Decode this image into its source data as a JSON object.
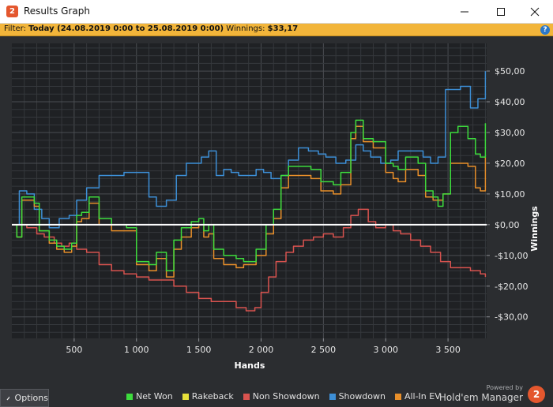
{
  "window": {
    "title": "Results Graph",
    "minimize_icon": "minimize-icon",
    "maximize_icon": "maximize-icon",
    "close_icon": "close-icon"
  },
  "filter": {
    "label": "Filter:",
    "range": "Today (24.08.2019 0:00 to 25.08.2019 0:00)",
    "winnings_label": "Winnings:",
    "winnings_value": "$33,17",
    "help_icon": "help-icon"
  },
  "footer": {
    "options_label": "Options",
    "options_icon": "chevron-up-icon",
    "powered_by": "Powered by",
    "brand": "Hold'em Manager",
    "brand_badge": "2"
  },
  "chart_data": {
    "type": "line",
    "xlabel": "Hands",
    "ylabel": "Winnings",
    "xlim": [
      0,
      3810
    ],
    "ylim": [
      -37,
      59
    ],
    "x_ticks": [
      500,
      1000,
      1500,
      2000,
      2500,
      3000,
      3500
    ],
    "x_tick_labels": [
      "500",
      "1 000",
      "1 500",
      "2 000",
      "2 500",
      "3 000",
      "3 500"
    ],
    "y_ticks": [
      50,
      40,
      30,
      20,
      10,
      0,
      -10,
      -20,
      -30
    ],
    "y_tick_labels": [
      "$50,00",
      "$40,00",
      "$30,00",
      "$20,00",
      "$10,00",
      "$0,00",
      "-$10,00",
      "-$20,00",
      "-$30,00"
    ],
    "grid": true,
    "zero_line": true,
    "legend_position": "bottom",
    "series": [
      {
        "name": "Net Won",
        "color": "#3ddc3d",
        "x": [
          0,
          40,
          80,
          180,
          220,
          300,
          360,
          420,
          480,
          520,
          560,
          620,
          700,
          800,
          920,
          1000,
          1100,
          1160,
          1240,
          1300,
          1360,
          1440,
          1500,
          1540,
          1580,
          1620,
          1700,
          1800,
          1860,
          1960,
          2040,
          2100,
          2160,
          2220,
          2300,
          2400,
          2480,
          2580,
          2640,
          2720,
          2760,
          2820,
          2900,
          2960,
          3000,
          3060,
          3100,
          3160,
          3260,
          3320,
          3380,
          3420,
          3460,
          3520,
          3580,
          3660,
          3720,
          3760,
          3800
        ],
        "values": [
          0,
          -4,
          9,
          7,
          -2,
          -5,
          -7,
          -8,
          -6,
          3,
          4,
          9,
          2,
          0,
          -1,
          -12,
          -13,
          -9,
          -15,
          -5,
          -1,
          1,
          2,
          -2,
          0,
          -8,
          -10,
          -11,
          -12,
          -8,
          0,
          5,
          16,
          19,
          19,
          18,
          14,
          13,
          17,
          30,
          34,
          28,
          27,
          27,
          20,
          19,
          18,
          22,
          20,
          11,
          9,
          6,
          10,
          30,
          32,
          28,
          23,
          22,
          33
        ]
      },
      {
        "name": "Rakeback",
        "color": "#e6e03a",
        "x": [
          0,
          3810
        ],
        "values": [
          0,
          0
        ]
      },
      {
        "name": "Non Showdown",
        "color": "#d9534f",
        "x": [
          0,
          60,
          120,
          200,
          260,
          340,
          400,
          460,
          520,
          600,
          700,
          800,
          900,
          1000,
          1100,
          1200,
          1300,
          1400,
          1500,
          1600,
          1700,
          1800,
          1880,
          1950,
          2000,
          2060,
          2120,
          2200,
          2260,
          2340,
          2420,
          2500,
          2580,
          2660,
          2720,
          2780,
          2860,
          2920,
          3000,
          3060,
          3120,
          3200,
          3280,
          3360,
          3440,
          3520,
          3600,
          3680,
          3760,
          3800
        ],
        "values": [
          0,
          0,
          -1,
          -3,
          -4,
          -6,
          -7,
          -6,
          -8,
          -9,
          -13,
          -15,
          -16,
          -17,
          -18,
          -18,
          -20,
          -22,
          -24,
          -25,
          -25,
          -27,
          -28,
          -27,
          -22,
          -17,
          -12,
          -9,
          -7,
          -5,
          -4,
          -3,
          -4,
          -1,
          3,
          5,
          1,
          -1,
          0,
          -2,
          -3,
          -5,
          -7,
          -9,
          -12,
          -14,
          -14,
          -15,
          -16,
          -17
        ]
      },
      {
        "name": "Showdown",
        "color": "#3d8fd6",
        "x": [
          0,
          60,
          120,
          180,
          240,
          300,
          380,
          460,
          520,
          600,
          700,
          800,
          900,
          960,
          1040,
          1100,
          1160,
          1240,
          1320,
          1400,
          1460,
          1520,
          1580,
          1640,
          1700,
          1760,
          1820,
          1880,
          1960,
          2020,
          2080,
          2160,
          2220,
          2300,
          2380,
          2460,
          2520,
          2600,
          2680,
          2760,
          2820,
          2880,
          2960,
          3040,
          3100,
          3160,
          3240,
          3300,
          3360,
          3420,
          3480,
          3540,
          3600,
          3680,
          3740,
          3800
        ],
        "values": [
          0,
          11,
          10,
          5,
          2,
          -1,
          2,
          3,
          8,
          12,
          16,
          16,
          17,
          17,
          17,
          9,
          6,
          8,
          16,
          20,
          20,
          22,
          24,
          16,
          18,
          17,
          16,
          16,
          18,
          17,
          15,
          16,
          21,
          25,
          24,
          23,
          22,
          20,
          21,
          26,
          24,
          22,
          20,
          21,
          24,
          24,
          24,
          22,
          20,
          22,
          44,
          44,
          45,
          38,
          41,
          50
        ]
      },
      {
        "name": "All-In EV",
        "color": "#e88f2a",
        "x": [
          0,
          40,
          80,
          180,
          220,
          300,
          360,
          420,
          480,
          520,
          560,
          620,
          700,
          800,
          920,
          1000,
          1100,
          1160,
          1240,
          1300,
          1360,
          1440,
          1500,
          1540,
          1580,
          1620,
          1700,
          1800,
          1860,
          1960,
          2040,
          2100,
          2160,
          2220,
          2300,
          2400,
          2480,
          2580,
          2640,
          2720,
          2760,
          2820,
          2900,
          2960,
          3000,
          3060,
          3100,
          3160,
          3260,
          3320,
          3380,
          3420,
          3460,
          3520,
          3580,
          3660,
          3720,
          3760,
          3800
        ],
        "values": [
          0,
          -4,
          8,
          6,
          -2,
          -6,
          -8,
          -9,
          -7,
          1,
          2,
          7,
          0,
          -2,
          -2,
          -13,
          -15,
          -11,
          -17,
          -8,
          -4,
          -1,
          0,
          -4,
          -3,
          -11,
          -13,
          -14,
          -13,
          -10,
          -3,
          2,
          12,
          16,
          16,
          15,
          11,
          10,
          13,
          28,
          32,
          27,
          25,
          25,
          17,
          15,
          14,
          18,
          16,
          9,
          8,
          8,
          10,
          20,
          20,
          19,
          12,
          11,
          22
        ]
      }
    ]
  }
}
